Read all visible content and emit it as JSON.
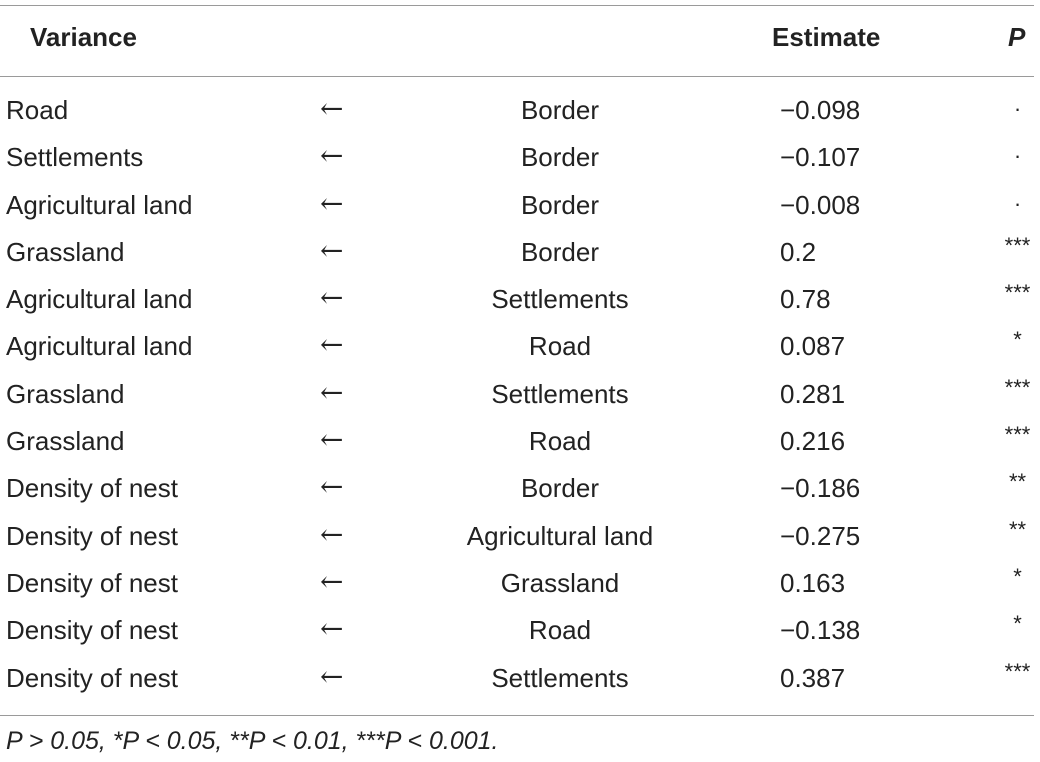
{
  "header": {
    "variance": "Variance",
    "estimate": "Estimate",
    "p": "P"
  },
  "arrow": "←",
  "rows": [
    {
      "variance": "Road",
      "source": "Border",
      "estimate": "−0.098",
      "p": "."
    },
    {
      "variance": "Settlements",
      "source": "Border",
      "estimate": "−0.107",
      "p": "."
    },
    {
      "variance": "Agricultural land",
      "source": "Border",
      "estimate": "−0.008",
      "p": "."
    },
    {
      "variance": "Grassland",
      "source": "Border",
      "estimate": "0.2",
      "p": "***"
    },
    {
      "variance": "Agricultural land",
      "source": "Settlements",
      "estimate": "0.78",
      "p": "***"
    },
    {
      "variance": "Agricultural land",
      "source": "Road",
      "estimate": "0.087",
      "p": "*"
    },
    {
      "variance": "Grassland",
      "source": "Settlements",
      "estimate": "0.281",
      "p": "***"
    },
    {
      "variance": "Grassland",
      "source": "Road",
      "estimate": "0.216",
      "p": "***"
    },
    {
      "variance": "Density of nest",
      "source": "Border",
      "estimate": "−0.186",
      "p": "**"
    },
    {
      "variance": "Density of nest",
      "source": "Agricultural land",
      "estimate": "−0.275",
      "p": "**"
    },
    {
      "variance": "Density of nest",
      "source": "Grassland",
      "estimate": "0.163",
      "p": "*"
    },
    {
      "variance": "Density of nest",
      "source": "Road",
      "estimate": "−0.138",
      "p": "*"
    },
    {
      "variance": "Density of nest",
      "source": "Settlements",
      "estimate": "0.387",
      "p": "***"
    }
  ],
  "footnote": "P > 0.05, *P < 0.05, **P < 0.01, ***P < 0.001."
}
